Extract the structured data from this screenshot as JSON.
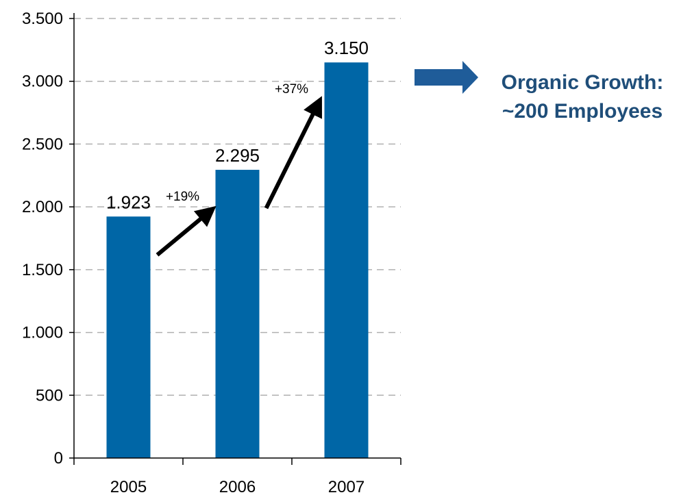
{
  "chart_data": {
    "type": "bar",
    "categories": [
      "2005",
      "2006",
      "2007"
    ],
    "values": [
      1923,
      2295,
      3150
    ],
    "value_labels": [
      "1.923",
      "2.295",
      "3.150"
    ],
    "title": "",
    "xlabel": "",
    "ylabel": "",
    "ylim": [
      0,
      3500
    ],
    "yticks": [
      0,
      500,
      1000,
      1500,
      2000,
      2500,
      3000,
      3500
    ],
    "ytick_labels": [
      "0",
      "500",
      "1.000",
      "1.500",
      "2.000",
      "2.500",
      "3.000",
      "3.500"
    ],
    "grid": "horizontal dashed",
    "bar_color": "#0066A6",
    "annotations": [
      {
        "text": "+19%",
        "from": "2005",
        "to": "2006"
      },
      {
        "text": "+37%",
        "from": "2006",
        "to": "2007"
      }
    ]
  },
  "callout": {
    "line1": "Organic Growth:",
    "line2": "~200 Employees",
    "color": "#1F4E79",
    "arrow_color": "#1F5C99"
  }
}
